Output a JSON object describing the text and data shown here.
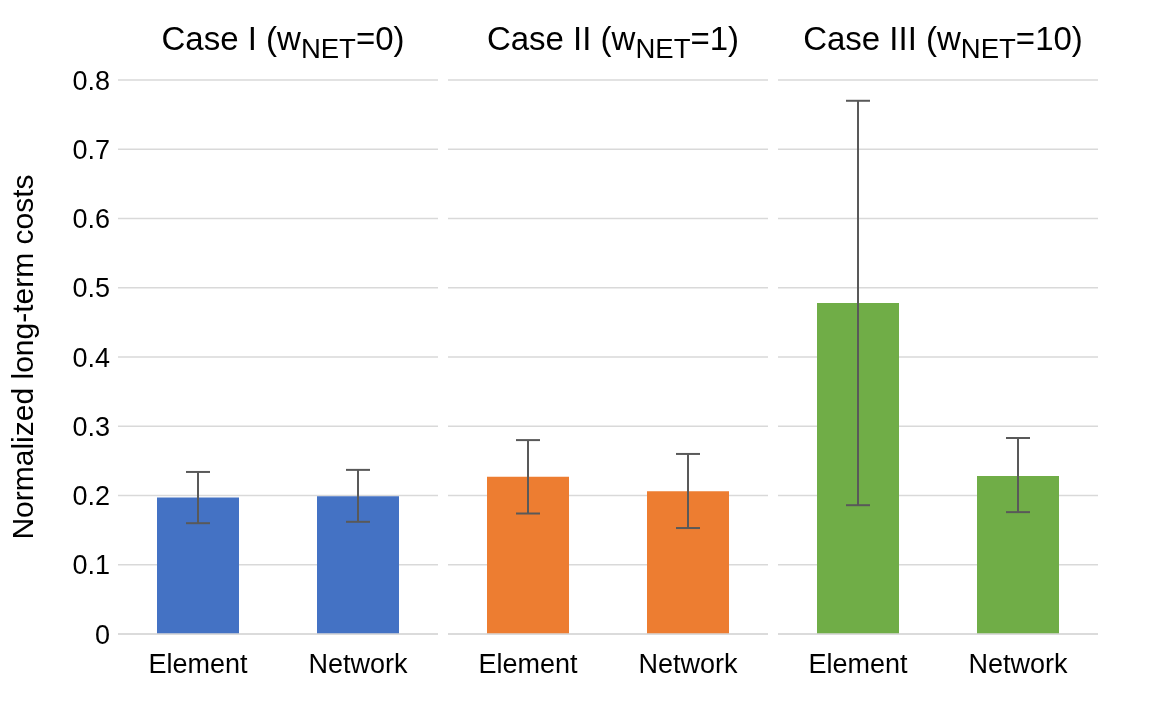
{
  "chart_data": [
    {
      "type": "bar",
      "title": "Case I (w$_{NET}$=0)",
      "ylabel": "Normalized long-term costs",
      "categories": [
        "Element",
        "Network"
      ],
      "values": [
        0.197,
        0.199
      ],
      "errors": [
        [
          0.16,
          0.234
        ],
        [
          0.162,
          0.237
        ]
      ],
      "colors": [
        "#4472c4",
        "#4472c4"
      ],
      "ylim": [
        0,
        0.8
      ],
      "yticks": [
        0,
        0.1,
        0.2,
        0.3,
        0.4,
        0.5,
        0.6,
        0.7,
        0.8
      ],
      "grid": "y"
    },
    {
      "type": "bar",
      "title": "Case II (w$_{NET}$=1)",
      "categories": [
        "Element",
        "Network"
      ],
      "values": [
        0.227,
        0.206
      ],
      "errors": [
        [
          0.174,
          0.28
        ],
        [
          0.153,
          0.26
        ]
      ],
      "colors": [
        "#ed7d31",
        "#ed7d31"
      ],
      "ylim": [
        0,
        0.8
      ],
      "yticks": [
        0,
        0.1,
        0.2,
        0.3,
        0.4,
        0.5,
        0.6,
        0.7,
        0.8
      ],
      "grid": "y",
      "tick_labels": "x"
    },
    {
      "type": "bar",
      "title": "Case III (w$_{NET}$=10)",
      "categories": [
        "Element",
        "Network"
      ],
      "values": [
        0.478,
        0.228
      ],
      "errors": [
        [
          0.186,
          0.77
        ],
        [
          0.176,
          0.283
        ]
      ],
      "colors": [
        "#70ad47",
        "#70ad47"
      ],
      "ylim": [
        0,
        0.8
      ],
      "yticks": [
        0,
        0.1,
        0.2,
        0.3,
        0.4,
        0.5,
        0.6,
        0.7,
        0.8
      ],
      "grid": "y",
      "tick_labels": "x"
    }
  ]
}
